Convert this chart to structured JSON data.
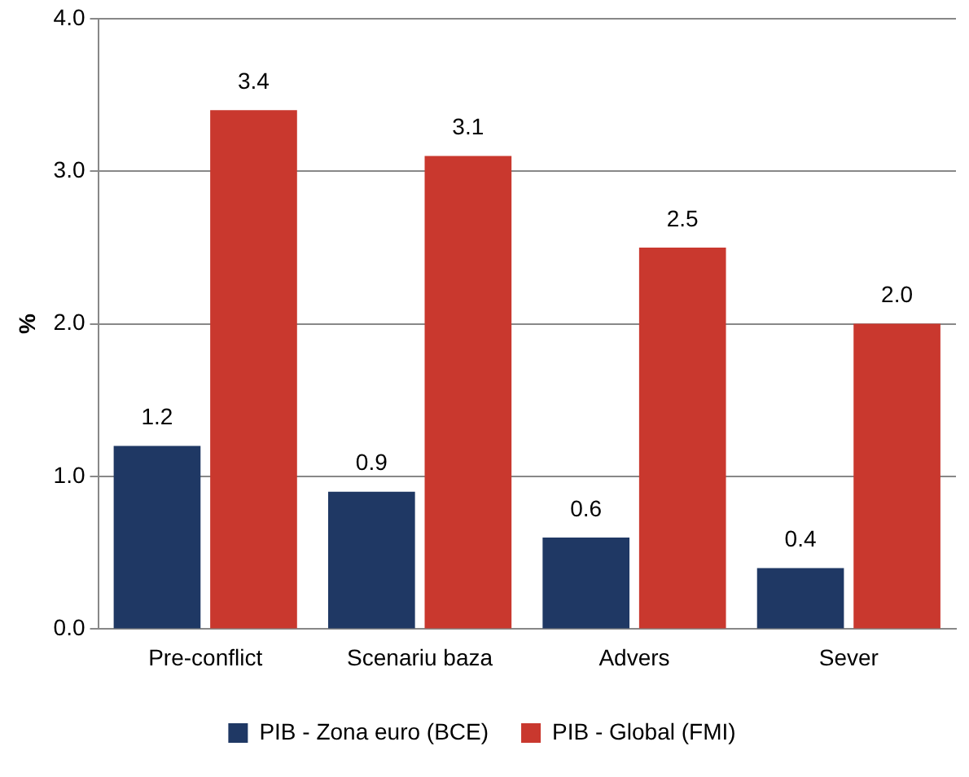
{
  "chart_data": {
    "type": "bar",
    "ylabel": "%",
    "categories": [
      "Pre-conflict",
      "Scenariu baza",
      "Advers",
      "Sever"
    ],
    "series": [
      {
        "name": "PIB - Zona euro (BCE)",
        "color": "#1f3864",
        "values": [
          1.2,
          0.9,
          0.6,
          0.4
        ],
        "value_labels": [
          "1.2",
          "0.9",
          "0.6",
          "0.4"
        ]
      },
      {
        "name": "PIB - Global (FMI)",
        "color": "#c9382e",
        "values": [
          3.4,
          3.1,
          2.5,
          2.0
        ],
        "value_labels": [
          "3.4",
          "3.1",
          "2.5",
          "2.0"
        ]
      }
    ],
    "ylim": [
      0,
      4
    ],
    "yticks": [
      {
        "value": 0,
        "label": "0.0"
      },
      {
        "value": 1,
        "label": "1.0"
      },
      {
        "value": 2,
        "label": "2.0"
      },
      {
        "value": 3,
        "label": "3.0"
      },
      {
        "value": 4,
        "label": "4.0"
      }
    ],
    "grid": "y",
    "legend": "bottom"
  }
}
